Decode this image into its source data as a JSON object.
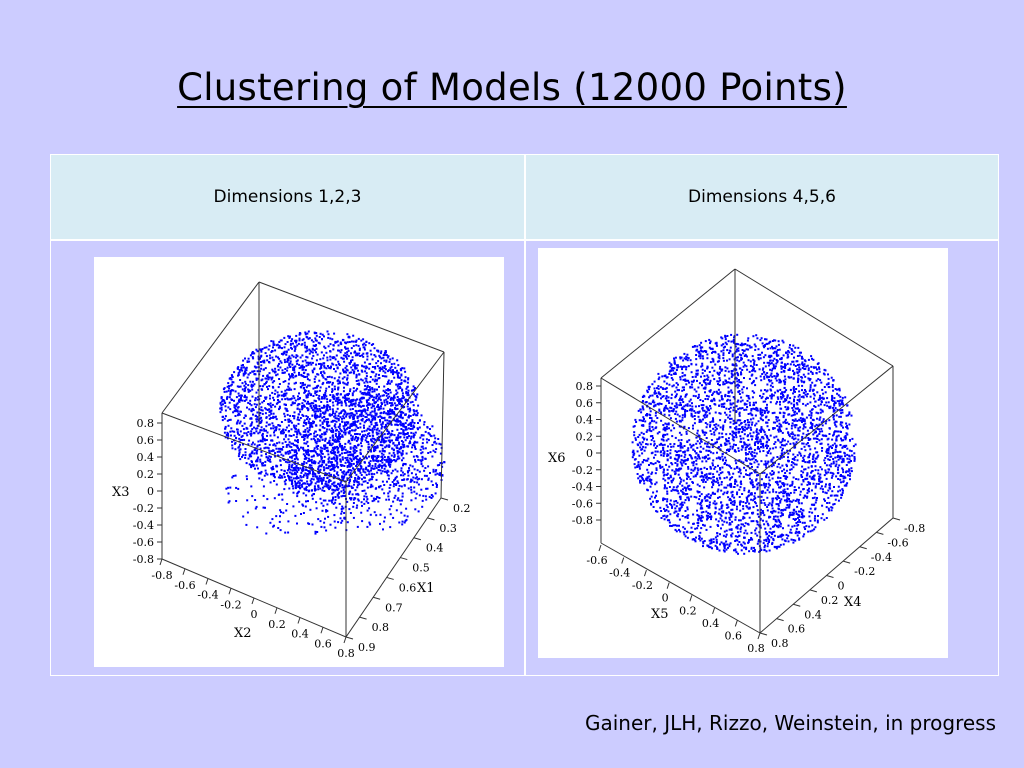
{
  "slide": {
    "title": "Clustering of Models (12000 Points)",
    "credit": "Gainer, JLH, Rizzo, Weinstein, in progress"
  },
  "colors": {
    "background": "#ccccff",
    "header_fill": "#d8ecf4",
    "points": "#0000ff"
  },
  "table": {
    "headers": [
      "Dimensions 1,2,3",
      "Dimensions 4,5,6"
    ]
  },
  "chart_data": [
    {
      "type": "scatter",
      "title": "",
      "n_points": 12000,
      "axes": {
        "x": {
          "label": "X1",
          "ticks": [
            "0.2",
            "0.3",
            "0.4",
            "0.5",
            "0.6",
            "0.7",
            "0.8",
            "0.9"
          ],
          "range": [
            0.2,
            0.9
          ]
        },
        "y": {
          "label": "X2",
          "ticks": [
            "-0.8",
            "-0.6",
            "-0.4",
            "-0.2",
            "0",
            "0.2",
            "0.4",
            "0.6",
            "0.8"
          ],
          "range": [
            -0.8,
            0.8
          ]
        },
        "z": {
          "label": "X3",
          "ticks": [
            "0.8",
            "0.6",
            "0.4",
            "0.2",
            "0",
            "-0.2",
            "-0.4",
            "-0.6",
            "-0.8"
          ],
          "range": [
            -0.8,
            0.8
          ]
        }
      },
      "grid": false
    },
    {
      "type": "scatter",
      "title": "",
      "n_points": 12000,
      "axes": {
        "x": {
          "label": "X4",
          "ticks": [
            "-0.8",
            "-0.6",
            "-0.4",
            "-0.2",
            "0",
            "0.2",
            "0.4",
            "0.6",
            "0.8"
          ],
          "range": [
            -0.8,
            0.8
          ]
        },
        "y": {
          "label": "X5",
          "ticks": [
            "-0.6",
            "-0.4",
            "-0.2",
            "0",
            "0.2",
            "0.4",
            "0.6",
            "0.8"
          ],
          "range": [
            -0.6,
            0.8
          ]
        },
        "z": {
          "label": "X6",
          "ticks": [
            "0.8",
            "0.6",
            "0.4",
            "0.2",
            "0",
            "-0.2",
            "-0.4",
            "-0.6",
            "-0.8"
          ],
          "range": [
            -0.8,
            0.8
          ]
        }
      },
      "grid": false
    }
  ]
}
